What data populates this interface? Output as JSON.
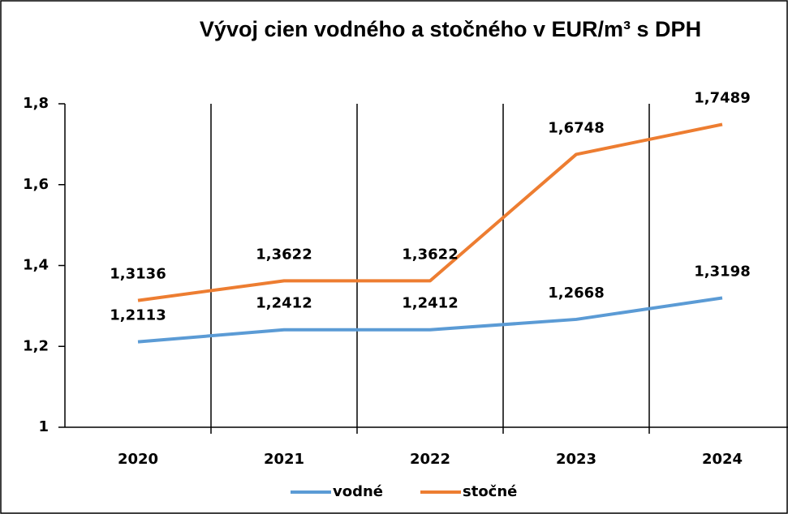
{
  "chart_data": {
    "type": "line",
    "title": "Vývoj cien vodného a stočného v EUR/m³ s DPH",
    "categories": [
      "2020",
      "2021",
      "2022",
      "2023",
      "2024"
    ],
    "series": [
      {
        "name": "vodné",
        "color": "#5b9bd5",
        "values": [
          1.2113,
          1.2412,
          1.2412,
          1.2668,
          1.3198
        ],
        "value_labels": [
          "1,2113",
          "1,2412",
          "1,2412",
          "1,2668",
          "1,3198"
        ]
      },
      {
        "name": "stočné",
        "color": "#ed7d31",
        "values": [
          1.3136,
          1.3622,
          1.3622,
          1.6748,
          1.7489
        ],
        "value_labels": [
          "1,3136",
          "1,3622",
          "1,3622",
          "1,6748",
          "1,7489"
        ]
      }
    ],
    "ylim": [
      1,
      1.8
    ],
    "yticks": [
      1,
      {
        "value": 1.2,
        "label": "1,2"
      },
      {
        "value": 1.4,
        "label": "1,4"
      },
      {
        "value": 1.6,
        "label": "1,6"
      },
      {
        "value": 1.8,
        "label": "1,8"
      }
    ],
    "legend": "bottom"
  }
}
